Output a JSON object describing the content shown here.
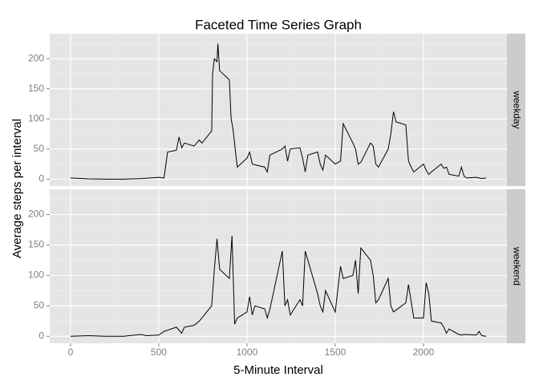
{
  "chart_data": {
    "type": "line",
    "title": "Faceted Time Series Graph",
    "xlabel": "5-Minute Interval",
    "ylabel": "Average steps per interval",
    "xlim": [
      -117.75,
      2472.75
    ],
    "xticks": [
      0,
      500,
      1000,
      1500,
      2000
    ],
    "color": "#000000",
    "grid": true,
    "panels": [
      {
        "label": "weekday",
        "ylim": [
          -11.5,
          241.5
        ],
        "yticks": [
          0,
          50,
          100,
          150,
          200
        ],
        "x": [
          0,
          100,
          200,
          300,
          400,
          500,
          530,
          550,
          600,
          615,
          630,
          645,
          700,
          730,
          745,
          800,
          805,
          815,
          830,
          835,
          845,
          900,
          910,
          920,
          935,
          945,
          1000,
          1015,
          1030,
          1100,
          1115,
          1130,
          1200,
          1215,
          1230,
          1245,
          1300,
          1315,
          1330,
          1345,
          1400,
          1415,
          1430,
          1445,
          1500,
          1530,
          1545,
          1600,
          1615,
          1630,
          1645,
          1700,
          1715,
          1730,
          1745,
          1800,
          1815,
          1830,
          1845,
          1900,
          1915,
          1930,
          1945,
          2000,
          2015,
          2030,
          2045,
          2100,
          2115,
          2130,
          2145,
          2200,
          2215,
          2230,
          2245,
          2300,
          2330,
          2355
        ],
        "values": [
          2,
          0.5,
          0,
          0,
          1,
          3,
          2,
          45,
          48,
          70,
          52,
          60,
          55,
          65,
          60,
          80,
          175,
          200,
          195,
          225,
          180,
          165,
          100,
          85,
          45,
          20,
          35,
          45,
          25,
          20,
          12,
          40,
          50,
          55,
          30,
          50,
          52,
          35,
          12,
          40,
          45,
          25,
          15,
          40,
          25,
          30,
          92,
          60,
          50,
          25,
          28,
          60,
          55,
          25,
          20,
          50,
          75,
          112,
          95,
          90,
          30,
          20,
          12,
          25,
          15,
          8,
          12,
          25,
          18,
          20,
          8,
          5,
          20,
          5,
          2,
          3,
          1,
          2
        ]
      },
      {
        "label": "weekend",
        "ylim": [
          -11.5,
          241.5
        ],
        "yticks": [
          0,
          50,
          100,
          150,
          200
        ],
        "x": [
          0,
          100,
          200,
          300,
          400,
          430,
          500,
          530,
          600,
          630,
          645,
          700,
          730,
          800,
          815,
          830,
          845,
          900,
          915,
          930,
          945,
          1000,
          1015,
          1030,
          1045,
          1100,
          1115,
          1130,
          1145,
          1200,
          1215,
          1230,
          1245,
          1300,
          1315,
          1330,
          1400,
          1415,
          1430,
          1445,
          1500,
          1530,
          1545,
          1600,
          1615,
          1630,
          1645,
          1700,
          1715,
          1730,
          1745,
          1800,
          1815,
          1830,
          1900,
          1915,
          1945,
          2000,
          2015,
          2030,
          2045,
          2100,
          2115,
          2130,
          2145,
          2200,
          2215,
          2230,
          2300,
          2315,
          2330,
          2355
        ],
        "values": [
          0,
          1,
          0,
          0,
          3,
          1,
          2,
          8,
          15,
          5,
          15,
          18,
          25,
          50,
          110,
          160,
          110,
          95,
          165,
          20,
          30,
          40,
          65,
          35,
          50,
          45,
          30,
          45,
          65,
          140,
          50,
          60,
          35,
          60,
          50,
          140,
          70,
          50,
          40,
          75,
          40,
          115,
          95,
          100,
          125,
          70,
          145,
          125,
          100,
          55,
          60,
          95,
          50,
          40,
          55,
          85,
          30,
          30,
          88,
          70,
          25,
          22,
          15,
          5,
          12,
          3,
          2,
          3,
          2,
          8,
          1,
          0
        ]
      }
    ]
  }
}
